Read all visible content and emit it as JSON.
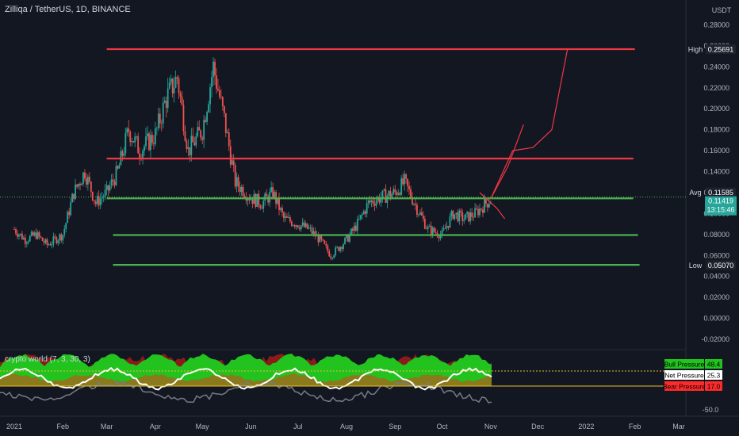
{
  "header": {
    "symbol_title": "Zilliqa / TetherUS, 1D, BINANCE",
    "currency": "USDT"
  },
  "indicator": {
    "title": "crypto world (7, 3, 30, 3)",
    "badges": [
      {
        "label": "Bull Pressure",
        "value": "48.4",
        "color": "#22c21f",
        "text_color": "#000000"
      },
      {
        "label": "Net Pressure",
        "value": "25.3",
        "color": "#ffffff",
        "text_color": "#000000"
      },
      {
        "label": "Bear Pressure",
        "value": "17.0",
        "color": "#ff2a2a",
        "text_color": "#000000"
      }
    ],
    "axis_tick": "-50.0"
  },
  "price_markers": {
    "high": {
      "label": "High",
      "value": "0.25691"
    },
    "avg": {
      "label": "Avg",
      "value": "0.11585"
    },
    "last": {
      "value": "0.11419",
      "countdown": "13:15:46",
      "color": "#26a69a"
    },
    "low": {
      "label": "Low",
      "value": "0.05070"
    }
  },
  "colors": {
    "background": "#131722",
    "up": "#26a69a",
    "down": "#ef5350",
    "support": "#4caf50",
    "resistance": "#f23645",
    "projection": "#f23645"
  },
  "chart_data": {
    "type": "candlestick",
    "title": "Zilliqa / TetherUS, 1D, BINANCE",
    "y_axis": {
      "ticks": [
        "0.28000",
        "0.26000",
        "0.24000",
        "0.22000",
        "0.20000",
        "0.18000",
        "0.16000",
        "0.14000",
        "0.12000",
        "0.10000",
        "0.08000",
        "0.06000",
        "0.04000",
        "0.02000",
        "0.00000",
        "-0.02000"
      ],
      "range": [
        -0.02,
        0.29
      ]
    },
    "x_axis": {
      "ticks": [
        "2021",
        "Feb",
        "Mar",
        "Apr",
        "May",
        "Jun",
        "Jul",
        "Aug",
        "Sep",
        "Oct",
        "Nov",
        "Dec",
        "2022",
        "Feb",
        "Mar"
      ],
      "range": [
        "2021-01-01",
        "2022-03-31"
      ]
    },
    "price_path": [
      [
        "2021-01-01",
        0.085
      ],
      [
        "2021-01-08",
        0.075
      ],
      [
        "2021-01-15",
        0.08
      ],
      [
        "2021-01-22",
        0.07
      ],
      [
        "2021-02-01",
        0.08
      ],
      [
        "2021-02-08",
        0.12
      ],
      [
        "2021-02-15",
        0.14
      ],
      [
        "2021-02-22",
        0.11
      ],
      [
        "2021-03-01",
        0.12
      ],
      [
        "2021-03-08",
        0.14
      ],
      [
        "2021-03-15",
        0.18
      ],
      [
        "2021-03-22",
        0.16
      ],
      [
        "2021-04-01",
        0.175
      ],
      [
        "2021-04-08",
        0.21
      ],
      [
        "2021-04-15",
        0.23
      ],
      [
        "2021-04-22",
        0.16
      ],
      [
        "2021-05-01",
        0.18
      ],
      [
        "2021-05-08",
        0.24
      ],
      [
        "2021-05-15",
        0.19
      ],
      [
        "2021-05-22",
        0.13
      ],
      [
        "2021-06-01",
        0.115
      ],
      [
        "2021-06-08",
        0.11
      ],
      [
        "2021-06-15",
        0.12
      ],
      [
        "2021-06-22",
        0.095
      ],
      [
        "2021-07-01",
        0.09
      ],
      [
        "2021-07-08",
        0.085
      ],
      [
        "2021-07-15",
        0.075
      ],
      [
        "2021-07-22",
        0.06
      ],
      [
        "2021-08-01",
        0.075
      ],
      [
        "2021-08-08",
        0.09
      ],
      [
        "2021-08-15",
        0.11
      ],
      [
        "2021-08-22",
        0.115
      ],
      [
        "2021-09-01",
        0.12
      ],
      [
        "2021-09-07",
        0.13
      ],
      [
        "2021-09-15",
        0.105
      ],
      [
        "2021-09-22",
        0.085
      ],
      [
        "2021-10-01",
        0.08
      ],
      [
        "2021-10-08",
        0.1
      ],
      [
        "2021-10-15",
        0.095
      ],
      [
        "2021-10-22",
        0.1
      ],
      [
        "2021-11-01",
        0.114
      ]
    ],
    "horizontal_levels": [
      {
        "name": "resistance",
        "value": 0.25691,
        "from": "2021-03-01",
        "to": "2022-02-01",
        "color": "#f23645"
      },
      {
        "name": "resistance",
        "value": 0.1525,
        "from": "2021-03-01",
        "to": "2022-01-31",
        "color": "#f23645"
      },
      {
        "name": "support",
        "value": 0.1145,
        "from": "2021-03-01",
        "to": "2022-01-31",
        "color": "#4caf50"
      },
      {
        "name": "support",
        "value": 0.0795,
        "from": "2021-03-05",
        "to": "2022-02-03",
        "color": "#4caf50"
      },
      {
        "name": "support",
        "value": 0.051,
        "from": "2021-03-05",
        "to": "2022-02-04",
        "color": "#4caf50"
      }
    ],
    "projections": [
      [
        [
          "2021-11-01",
          0.114
        ],
        [
          "2021-11-12",
          0.145
        ],
        [
          "2021-11-22",
          0.185
        ]
      ],
      [
        [
          "2021-11-01",
          0.114
        ],
        [
          "2021-11-15",
          0.16
        ],
        [
          "2021-11-28",
          0.163
        ],
        [
          "2021-12-10",
          0.18
        ],
        [
          "2021-12-20",
          0.257
        ]
      ],
      [
        [
          "2021-10-25",
          0.12
        ],
        [
          "2021-11-05",
          0.105
        ],
        [
          "2021-11-10",
          0.095
        ]
      ]
    ]
  }
}
